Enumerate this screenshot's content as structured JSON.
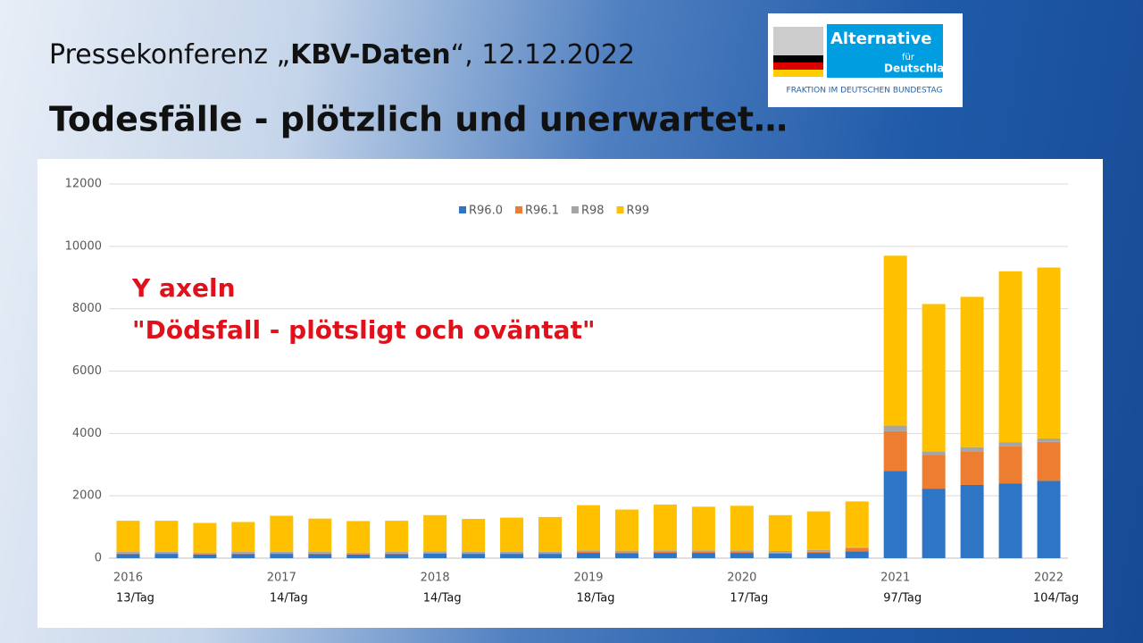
{
  "header": {
    "line1": [
      "Pressekonferenz „",
      "KBV-Daten",
      "“, 12.12.2022"
    ],
    "title": "Todesfälle - plötzlich und unerwartet…"
  },
  "logo": {
    "name": "Alternative",
    "small": "für",
    "name2": "Deutschland",
    "caption": "FRAKTION IM DEUTSCHEN BUNDESTAG"
  },
  "chart_data": {
    "type": "stacked_bar",
    "annotations": [
      "Y axeln",
      "\"Dödsfall - plötsligt och oväntat\""
    ],
    "categories": [
      "2016",
      null,
      null,
      null,
      "2017",
      null,
      null,
      null,
      "2018",
      null,
      null,
      null,
      "2019",
      null,
      null,
      null,
      "2020",
      null,
      null,
      null,
      "2021",
      null,
      null,
      null,
      "2022"
    ],
    "sublabels": [
      "13/Tag",
      null,
      null,
      null,
      "14/Tag",
      null,
      null,
      null,
      "14/Tag",
      null,
      null,
      null,
      "18/Tag",
      null,
      null,
      null,
      "17/Tag",
      null,
      null,
      null,
      "97/Tag",
      null,
      null,
      null,
      "104/Tag"
    ],
    "series": [
      {
        "name": "R96.0",
        "color": "#2e75c6",
        "values": [
          130,
          140,
          120,
          130,
          140,
          130,
          120,
          130,
          150,
          140,
          140,
          140,
          170,
          160,
          170,
          170,
          170,
          150,
          170,
          220,
          2800,
          2230,
          2350,
          2400,
          2480
        ]
      },
      {
        "name": "R96.1",
        "color": "#ed7d31",
        "values": [
          20,
          20,
          20,
          20,
          20,
          20,
          20,
          20,
          20,
          20,
          20,
          20,
          30,
          30,
          30,
          30,
          30,
          30,
          40,
          100,
          1270,
          1080,
          1080,
          1190,
          1250
        ]
      },
      {
        "name": "R98",
        "color": "#a5a5a5",
        "values": [
          50,
          50,
          40,
          50,
          50,
          50,
          40,
          50,
          50,
          40,
          40,
          50,
          50,
          50,
          50,
          50,
          50,
          50,
          50,
          30,
          180,
          110,
          130,
          130,
          110
        ]
      },
      {
        "name": "R99",
        "color": "#ffc000",
        "values": [
          1000,
          990,
          950,
          960,
          1150,
          1070,
          1010,
          1000,
          1160,
          1060,
          1100,
          1110,
          1450,
          1320,
          1470,
          1400,
          1430,
          1150,
          1240,
          1470,
          5450,
          4730,
          4820,
          5480,
          5480
        ]
      }
    ],
    "ylim": [
      0,
      12000
    ],
    "yticks": [
      0,
      2000,
      4000,
      6000,
      8000,
      10000,
      12000
    ],
    "grid": true
  }
}
